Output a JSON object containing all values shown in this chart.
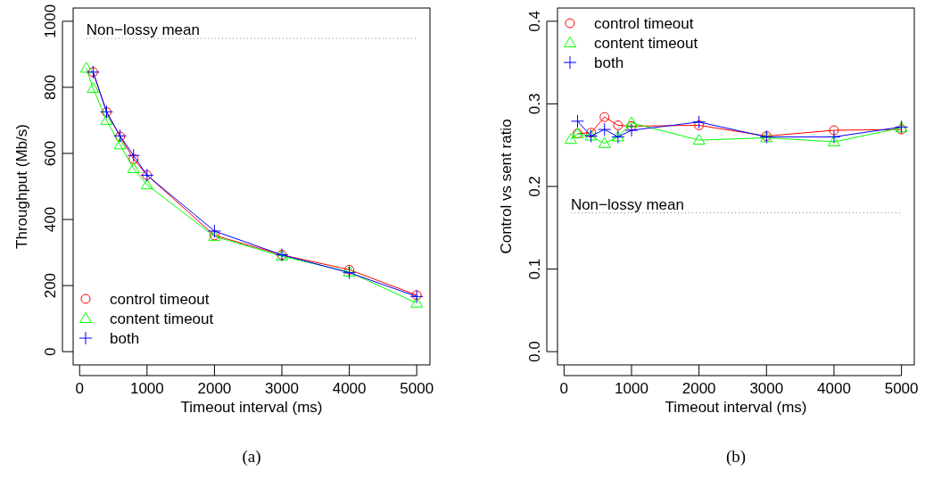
{
  "chart_data": [
    {
      "type": "line",
      "xlabel": "Timeout interval (ms)",
      "ylabel": "Throughput (Mb/s)",
      "xlim": [
        -96,
        5196
      ],
      "ylim": [
        -40,
        1040
      ],
      "xticks": [
        0,
        1000,
        2000,
        3000,
        4000,
        5000
      ],
      "yticks": [
        0,
        200,
        400,
        600,
        800,
        1000
      ],
      "legend": "bottom left",
      "annotations": [
        "(a)"
      ],
      "ref_lines": [
        {
          "axis": "y",
          "value": 948,
          "label": "Non−lossy mean",
          "color": "#808080",
          "line_style": "dotted"
        }
      ],
      "series": [
        {
          "name": "control timeout",
          "color": "#ff0000",
          "marker": "circle",
          "x": [
            200,
            400,
            600,
            800,
            1000,
            2000,
            3000,
            4000,
            5000
          ],
          "values": [
            846,
            725,
            651,
            583,
            534,
            352,
            293,
            248,
            171
          ]
        },
        {
          "name": "content timeout",
          "color": "#00ff00",
          "marker": "triangle",
          "x": [
            100,
            200,
            400,
            600,
            800,
            1000,
            2000,
            3000,
            4000,
            5000
          ],
          "values": [
            858,
            797,
            700,
            626,
            554,
            505,
            349,
            289,
            241,
            147
          ]
        },
        {
          "name": "both",
          "color": "#0000ff",
          "marker": "cross",
          "x": [
            200,
            400,
            600,
            800,
            1000,
            2000,
            3000,
            4000,
            5000
          ],
          "values": [
            846,
            726,
            653,
            594,
            534,
            365,
            293,
            239,
            167
          ]
        }
      ]
    },
    {
      "type": "line",
      "xlabel": "Timeout interval (ms)",
      "ylabel": "Control vs sent ratio",
      "xlim": [
        -97,
        5190
      ],
      "ylim": [
        -0.016,
        0.416
      ],
      "xticks": [
        0,
        1000,
        2000,
        3000,
        4000,
        5000
      ],
      "yticks": [
        {
          "value": 0,
          "label": "0.0"
        },
        0.1,
        0.2,
        0.3,
        0.4
      ],
      "legend": "top left",
      "annotations": [
        "(b)"
      ],
      "ref_lines": [
        {
          "axis": "y",
          "value": 0.168,
          "label": "Non−lossy mean",
          "color": "#808080",
          "line_style": "dotted"
        }
      ],
      "series": [
        {
          "name": "control timeout",
          "color": "#ff0000",
          "marker": "circle",
          "x": [
            200,
            400,
            600,
            800,
            1000,
            2000,
            3000,
            4000,
            5000
          ],
          "values": [
            0.264,
            0.265,
            0.284,
            0.274,
            0.273,
            0.274,
            0.261,
            0.268,
            0.269
          ]
        },
        {
          "name": "content timeout",
          "color": "#00ff00",
          "marker": "triangle",
          "x": [
            100,
            200,
            400,
            600,
            800,
            1000,
            2000,
            3000,
            4000,
            5000
          ],
          "values": [
            0.257,
            0.264,
            0.261,
            0.252,
            0.26,
            0.277,
            0.256,
            0.259,
            0.254,
            0.271
          ]
        },
        {
          "name": "both",
          "color": "#0000ff",
          "marker": "cross",
          "x": [
            200,
            400,
            600,
            800,
            1000,
            2000,
            3000,
            4000,
            5000
          ],
          "values": [
            0.279,
            0.261,
            0.269,
            0.26,
            0.268,
            0.278,
            0.26,
            0.26,
            0.272
          ]
        }
      ]
    }
  ]
}
